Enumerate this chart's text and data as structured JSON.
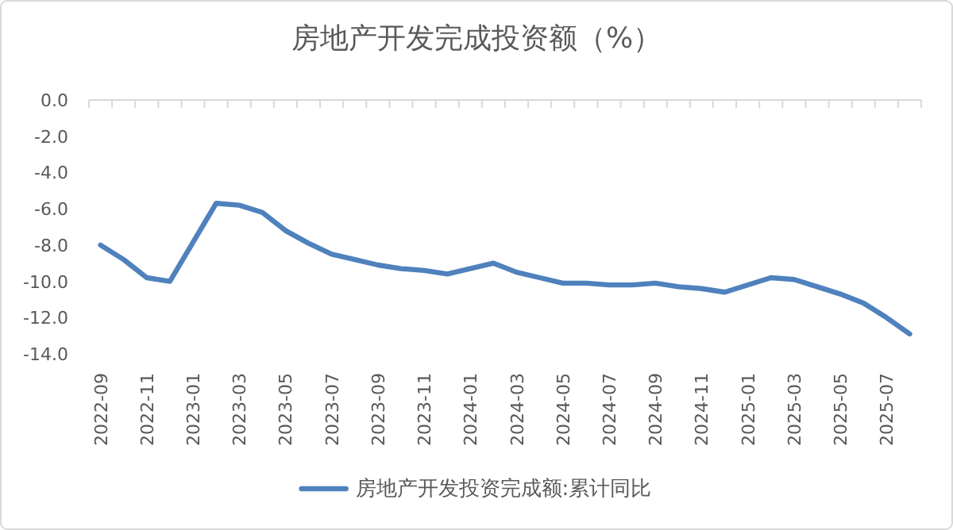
{
  "chart_data": {
    "type": "line",
    "title": "房地产开发完成投资额（%）",
    "categories": [
      "2022-09",
      null,
      "2022-11",
      null,
      "2023-01",
      null,
      "2023-03",
      null,
      "2023-05",
      null,
      "2023-07",
      null,
      "2023-09",
      null,
      "2023-11",
      null,
      "2024-01",
      null,
      "2024-03",
      null,
      "2024-05",
      null,
      "2024-07",
      null,
      "2024-09",
      null,
      "2024-11",
      null,
      "2025-01",
      null,
      "2025-03",
      null,
      "2025-05",
      null,
      "2025-07",
      null
    ],
    "series": [
      {
        "name": "房地产开发投资完成额:累计同比",
        "color": "#4f81bd",
        "values": [
          -8.0,
          -8.8,
          -9.8,
          -10.0,
          null,
          -5.7,
          -5.8,
          -6.2,
          -7.2,
          -7.9,
          -8.5,
          -8.8,
          -9.1,
          -9.3,
          -9.4,
          -9.6,
          null,
          -9.0,
          -9.5,
          -9.8,
          -10.1,
          -10.1,
          -10.2,
          -10.2,
          -10.1,
          -10.3,
          -10.4,
          -10.6,
          null,
          -9.8,
          -9.9,
          -10.3,
          -10.7,
          -11.2,
          -12.0,
          -12.9
        ]
      }
    ],
    "ylim": [
      -14,
      0
    ],
    "yticks": [
      {
        "value": 0,
        "label": "0.0"
      },
      {
        "value": -2,
        "label": "-2.0"
      },
      {
        "value": -4,
        "label": "-4.0"
      },
      {
        "value": -6,
        "label": "-6.0"
      },
      {
        "value": -8,
        "label": "-8.0"
      },
      {
        "value": -10,
        "label": "-10.0"
      },
      {
        "value": -12,
        "label": "-12.0"
      },
      {
        "value": -14,
        "label": "-14.0"
      }
    ],
    "legend": "bottom"
  }
}
